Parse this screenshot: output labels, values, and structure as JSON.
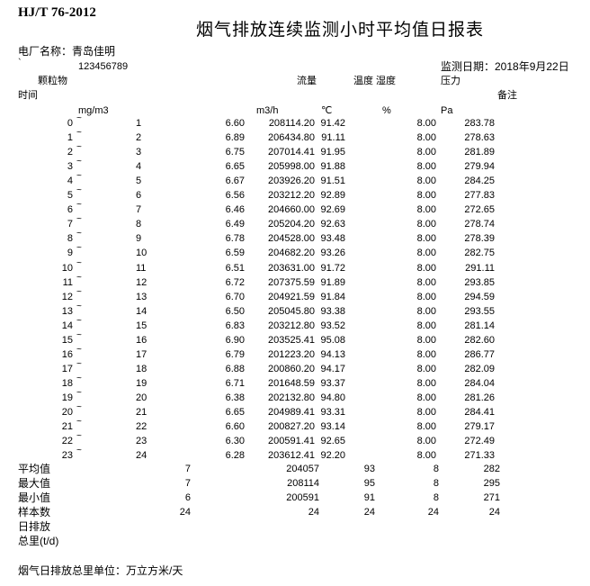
{
  "standard": "HJ/T 76-2012",
  "title": "烟气排放连续监测小时平均值日报表",
  "plant": "电厂名称：青岛佳明",
  "mark": "`",
  "code": "123456789",
  "date": "监测日期：2018年9月22日",
  "headers": {
    "particulate": "颗粒物",
    "flow": "流量",
    "temp_humidity": "温度 湿度",
    "pressure": "压力",
    "time": "时间",
    "remark": "备注"
  },
  "units": {
    "particulate": "mg/m3",
    "flow": "m3/h",
    "temp": "℃",
    "humidity": "%",
    "pressure": "Pa"
  },
  "range_sep": "~",
  "rows": [
    [
      "0",
      "1",
      "6.60",
      "208114.20",
      "91.42",
      "8.00",
      "283.78"
    ],
    [
      "1",
      "2",
      "6.89",
      "206434.80",
      "91.11",
      "8.00",
      "278.63"
    ],
    [
      "2",
      "3",
      "6.75",
      "207014.41",
      "91.95",
      "8.00",
      "281.89"
    ],
    [
      "3",
      "4",
      "6.65",
      "205998.00",
      "91.88",
      "8.00",
      "279.94"
    ],
    [
      "4",
      "5",
      "6.67",
      "203926.20",
      "91.51",
      "8.00",
      "284.25"
    ],
    [
      "5",
      "6",
      "6.56",
      "203212.20",
      "92.89",
      "8.00",
      "277.83"
    ],
    [
      "6",
      "7",
      "6.46",
      "204660.00",
      "92.69",
      "8.00",
      "272.65"
    ],
    [
      "7",
      "8",
      "6.49",
      "205204.20",
      "92.63",
      "8.00",
      "278.74"
    ],
    [
      "8",
      "9",
      "6.78",
      "204528.00",
      "93.48",
      "8.00",
      "278.39"
    ],
    [
      "9",
      "10",
      "6.59",
      "204682.20",
      "93.26",
      "8.00",
      "282.75"
    ],
    [
      "10",
      "11",
      "6.51",
      "203631.00",
      "91.72",
      "8.00",
      "291.11"
    ],
    [
      "11",
      "12",
      "6.72",
      "207375.59",
      "91.89",
      "8.00",
      "293.85"
    ],
    [
      "12",
      "13",
      "6.70",
      "204921.59",
      "91.84",
      "8.00",
      "294.59"
    ],
    [
      "13",
      "14",
      "6.50",
      "205045.80",
      "93.38",
      "8.00",
      "293.55"
    ],
    [
      "14",
      "15",
      "6.83",
      "203212.80",
      "93.52",
      "8.00",
      "281.14"
    ],
    [
      "15",
      "16",
      "6.90",
      "203525.41",
      "95.08",
      "8.00",
      "282.60"
    ],
    [
      "16",
      "17",
      "6.79",
      "201223.20",
      "94.13",
      "8.00",
      "286.77"
    ],
    [
      "17",
      "18",
      "6.88",
      "200860.20",
      "94.17",
      "8.00",
      "282.09"
    ],
    [
      "18",
      "19",
      "6.71",
      "201648.59",
      "93.37",
      "8.00",
      "284.04"
    ],
    [
      "19",
      "20",
      "6.38",
      "202132.80",
      "94.80",
      "8.00",
      "281.26"
    ],
    [
      "20",
      "21",
      "6.65",
      "204989.41",
      "93.31",
      "8.00",
      "284.41"
    ],
    [
      "21",
      "22",
      "6.60",
      "200827.20",
      "93.14",
      "8.00",
      "279.17"
    ],
    [
      "22",
      "23",
      "6.30",
      "200591.41",
      "92.65",
      "8.00",
      "272.49"
    ],
    [
      "23",
      "24",
      "6.28",
      "203612.41",
      "92.20",
      "8.00",
      "271.33"
    ]
  ],
  "summary": [
    [
      "平均值",
      "7",
      "204057",
      "93",
      "8",
      "282"
    ],
    [
      "最大值",
      "7",
      "208114",
      "95",
      "8",
      "295"
    ],
    [
      "最小值",
      "6",
      "200591",
      "91",
      "8",
      "271"
    ],
    [
      "样本数",
      "24",
      "24",
      "24",
      "24",
      "24"
    ],
    [
      "日排放",
      "",
      "",
      "",
      "",
      ""
    ],
    [
      "总里(t/d)",
      "",
      "",
      "",
      "",
      ""
    ]
  ],
  "footer": "烟气日排放总里单位：万立方米/天"
}
